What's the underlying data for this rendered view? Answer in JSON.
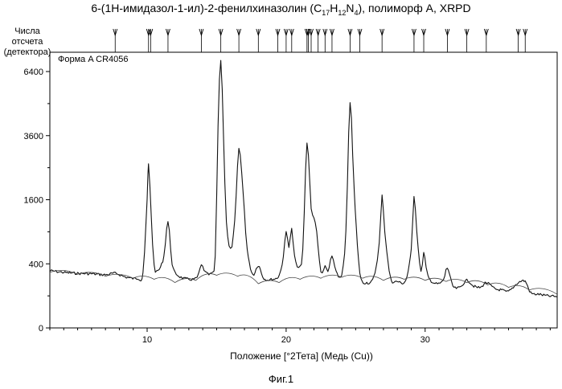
{
  "chart_data": {
    "type": "line",
    "title": "6-(1H-имидазол-1-ил)-2-фенилхиназолин (C17H12N4), полиморф A, XRPD",
    "ylabel": "Числа отсчета (детектора)",
    "xlabel": "Положение [°2Тета] (Медь (Cu))",
    "legend_text": "Форма A CR4056",
    "figure_label": "Фиг.1",
    "y_scale": "sqrt",
    "x_range": [
      3.0,
      39.5
    ],
    "y_range": [
      0,
      7400
    ],
    "x_ticks": [
      10,
      20,
      30
    ],
    "y_ticks": [
      0,
      400,
      1600,
      3600,
      6400
    ],
    "peak_markers": [
      7.7,
      10.1,
      10.25,
      11.5,
      13.9,
      15.3,
      16.6,
      18.0,
      19.4,
      20.0,
      20.4,
      21.5,
      21.6,
      21.8,
      22.3,
      22.8,
      23.3,
      24.6,
      25.3,
      26.9,
      29.2,
      29.9,
      31.6,
      33.0,
      34.4,
      36.7,
      37.2
    ],
    "series": [
      {
        "name": "measured",
        "x": [
          3.0,
          4.0,
          5.0,
          6.0,
          7.0,
          7.7,
          8.5,
          9.3,
          9.7,
          10.0,
          10.1,
          10.3,
          10.5,
          10.8,
          11.2,
          11.5,
          11.8,
          12.2,
          13.0,
          13.6,
          13.9,
          14.2,
          14.6,
          14.9,
          15.1,
          15.3,
          15.5,
          15.7,
          16.0,
          16.3,
          16.6,
          16.9,
          17.2,
          17.6,
          18.0,
          18.4,
          19.0,
          19.5,
          19.8,
          20.0,
          20.2,
          20.4,
          20.6,
          20.9,
          21.2,
          21.5,
          21.8,
          22.0,
          22.2,
          22.5,
          22.8,
          23.0,
          23.3,
          23.6,
          24.0,
          24.3,
          24.6,
          24.9,
          25.3,
          25.8,
          26.3,
          26.7,
          26.9,
          27.1,
          27.5,
          28.0,
          28.6,
          29.0,
          29.2,
          29.4,
          29.7,
          29.9,
          30.2,
          30.8,
          31.3,
          31.6,
          32.0,
          32.5,
          33.0,
          33.5,
          34.0,
          34.4,
          35.0,
          35.5,
          36.0,
          36.7,
          37.2,
          37.6,
          38.2,
          38.8,
          39.5
        ],
        "y": [
          320,
          300,
          290,
          285,
          275,
          290,
          250,
          240,
          300,
          1600,
          2600,
          1200,
          380,
          320,
          500,
          1100,
          400,
          270,
          230,
          250,
          380,
          300,
          290,
          500,
          4000,
          7000,
          3500,
          1100,
          600,
          1100,
          3100,
          1800,
          600,
          280,
          380,
          240,
          230,
          270,
          500,
          900,
          650,
          950,
          500,
          350,
          600,
          3300,
          1400,
          1200,
          900,
          300,
          380,
          300,
          500,
          300,
          280,
          900,
          4900,
          1800,
          300,
          200,
          250,
          700,
          1700,
          900,
          250,
          210,
          220,
          600,
          1700,
          900,
          300,
          550,
          260,
          190,
          220,
          350,
          170,
          160,
          220,
          170,
          160,
          200,
          150,
          140,
          130,
          200,
          210,
          120,
          110,
          100,
          95
        ]
      },
      {
        "name": "background",
        "x": [
          3.0,
          5.0,
          7.0,
          9.0,
          10.5,
          12.0,
          13.5,
          15.0,
          16.5,
          18.0,
          19.5,
          21.0,
          22.5,
          24.0,
          25.5,
          27.0,
          28.5,
          30.0,
          31.5,
          33.0,
          34.5,
          36.0,
          37.5,
          39.5
        ],
        "y": [
          300,
          280,
          260,
          240,
          230,
          200,
          220,
          270,
          260,
          190,
          200,
          230,
          240,
          250,
          240,
          220,
          230,
          220,
          210,
          200,
          180,
          160,
          140,
          110
        ]
      }
    ]
  }
}
